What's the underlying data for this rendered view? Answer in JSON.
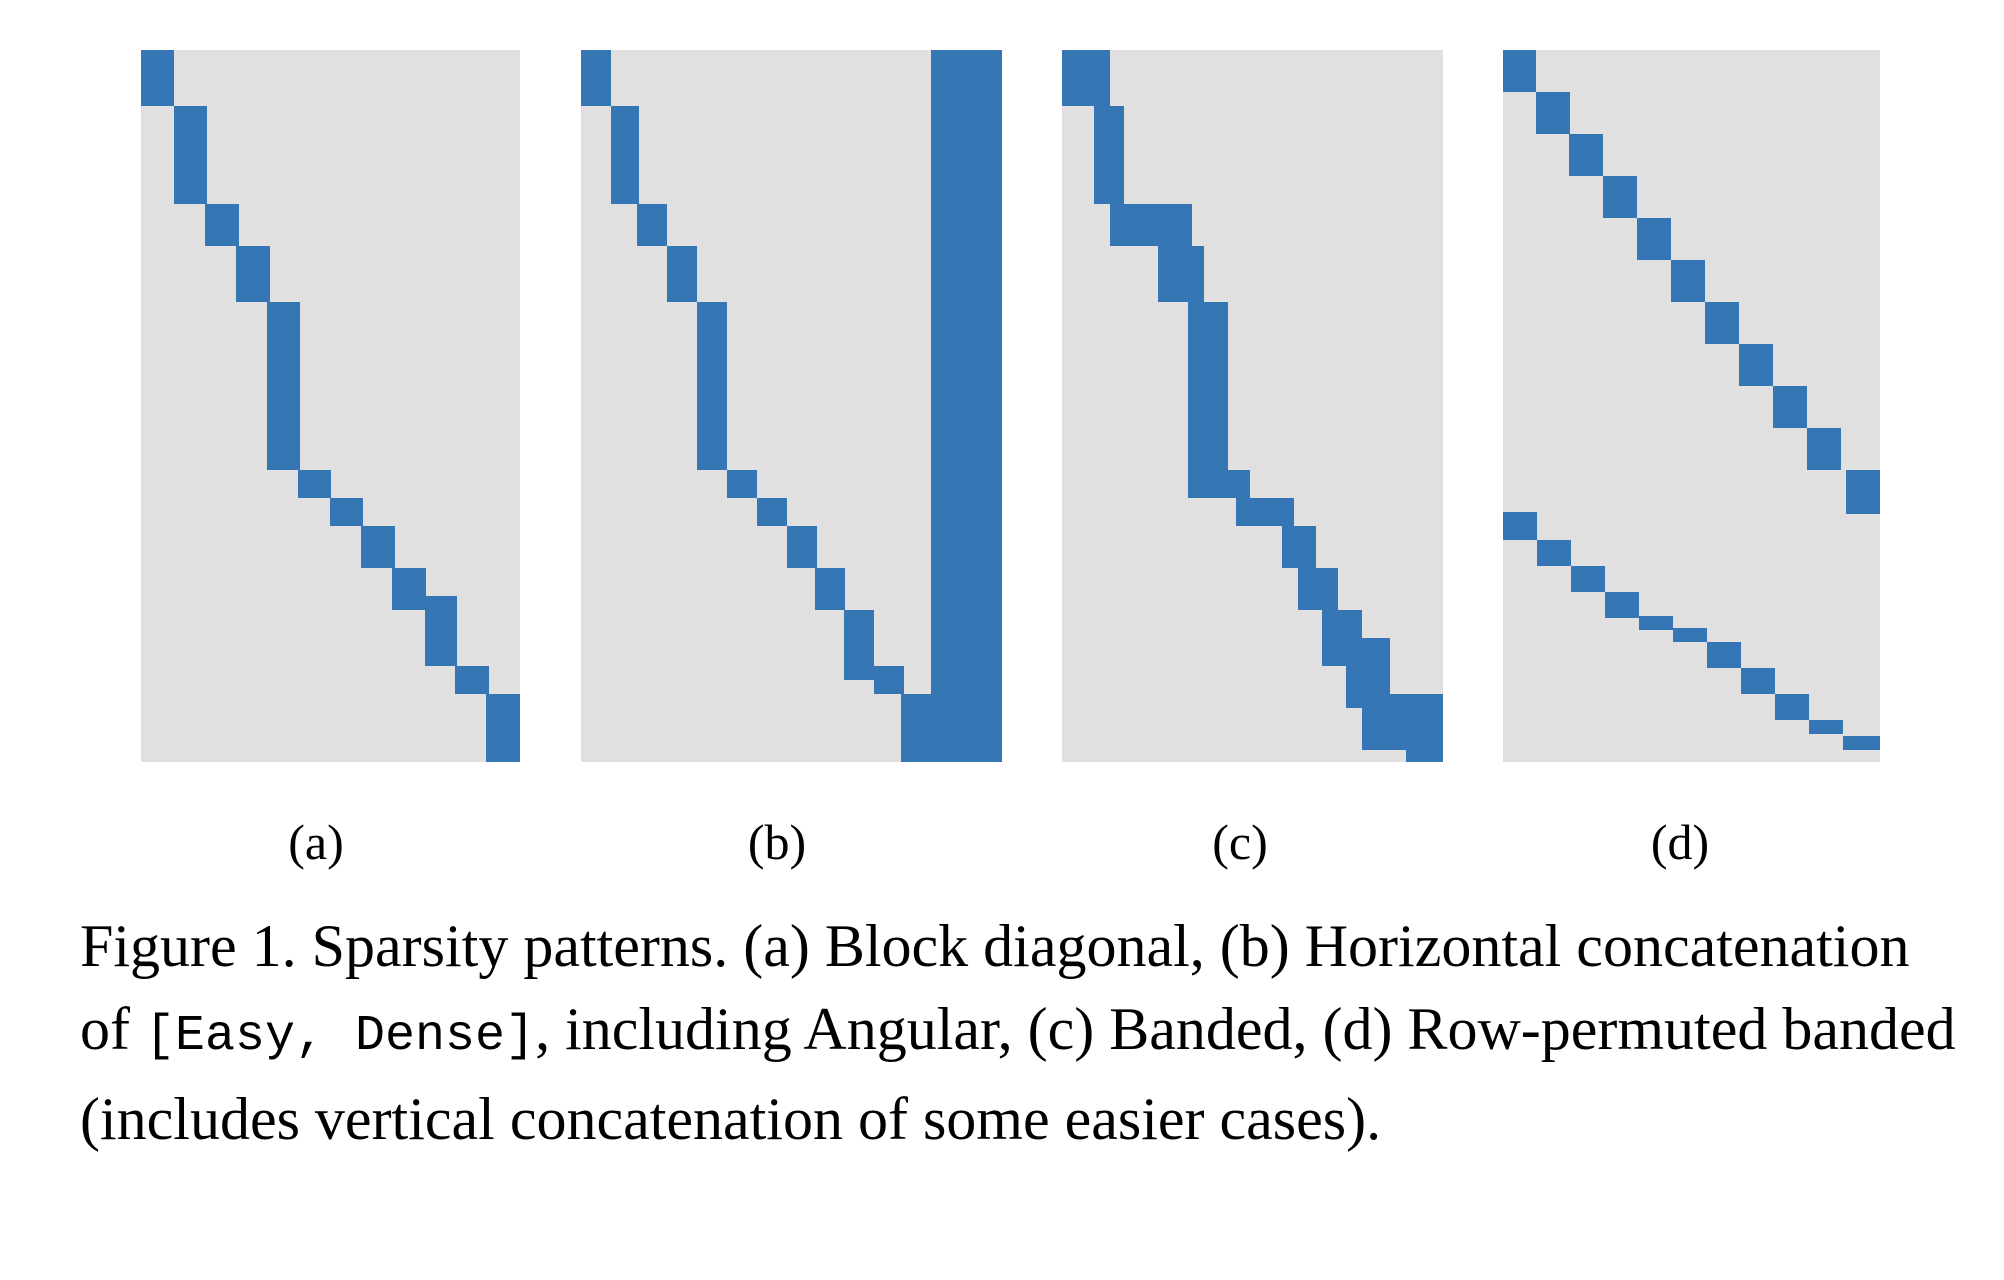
{
  "figure": {
    "panels": [
      {
        "id": "a",
        "label": "(a)"
      },
      {
        "id": "b",
        "label": "(b)"
      },
      {
        "id": "c",
        "label": "(c)"
      },
      {
        "id": "d",
        "label": "(d)"
      }
    ],
    "colors": {
      "background": "#e0e0e0",
      "nonzero": "#3676b4"
    },
    "caption": {
      "prefix": "Figure 1. Sparsity patterns. (a) Block diagonal, (b) Horizontal concatenation of ",
      "code": "[Easy, Dense]",
      "suffix": ", including Angular, (c) Banded, (d) Row-permuted banded (includes vertical concatenation of some easier cases)."
    }
  }
}
